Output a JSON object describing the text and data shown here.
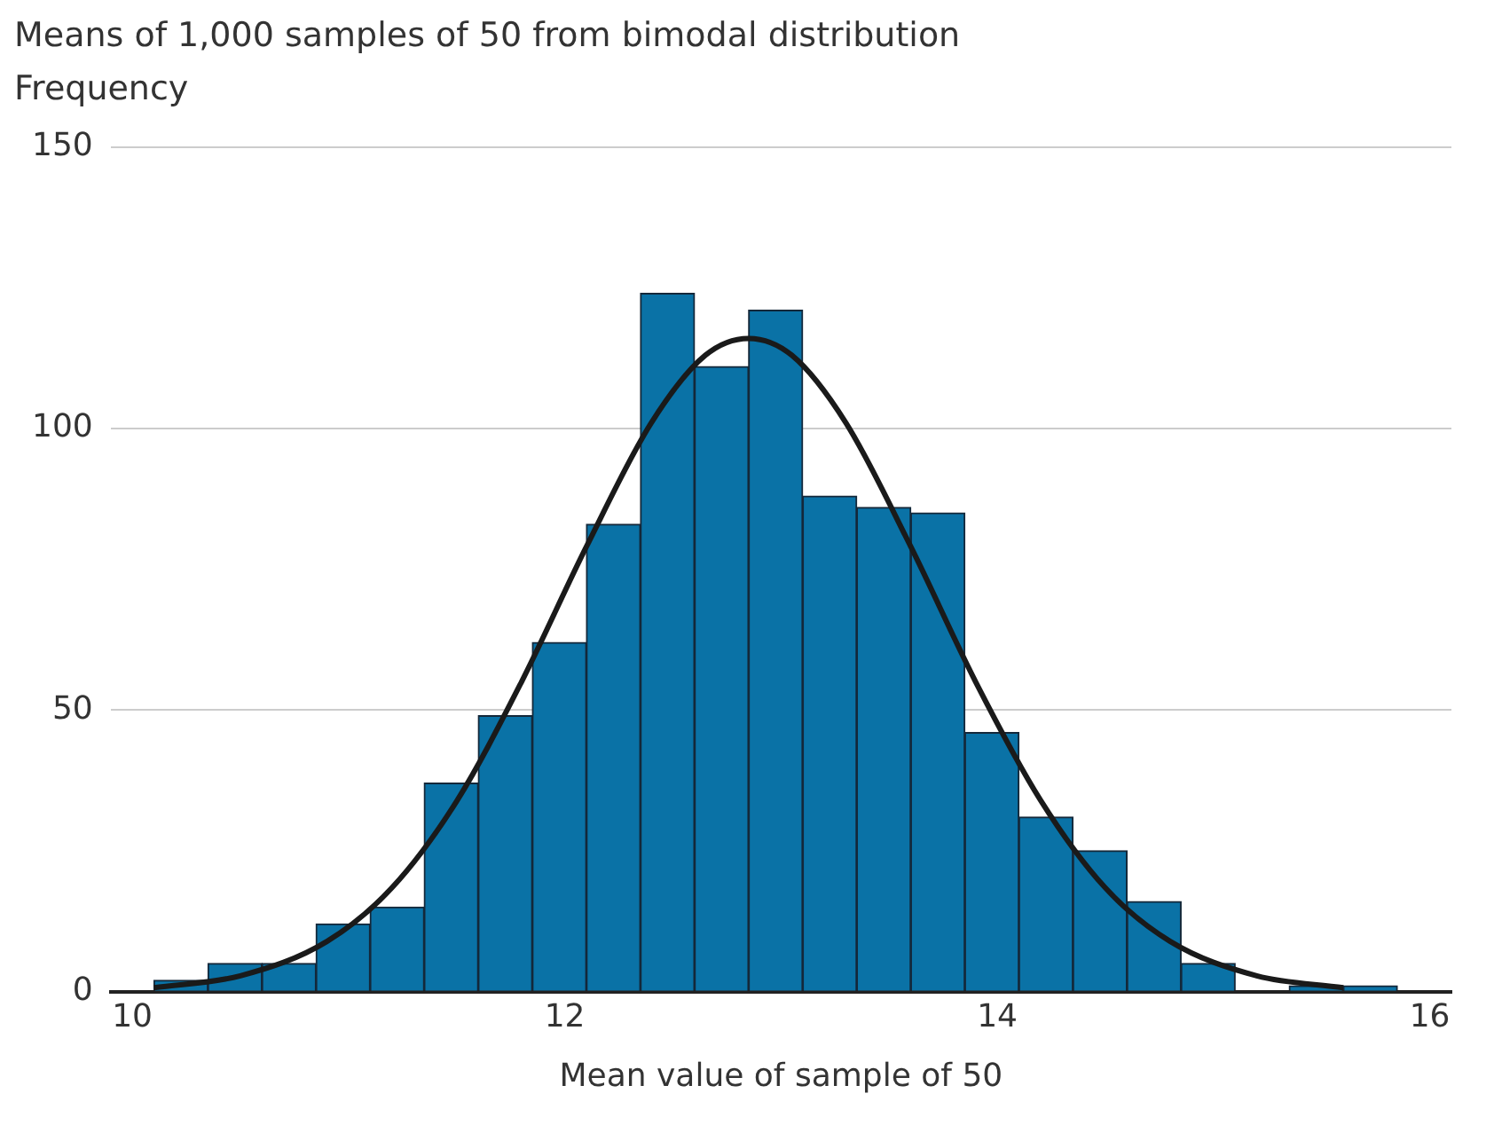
{
  "chart_data": {
    "type": "histogram",
    "title": "Means of 1,000 samples of 50 from bimodal distribution",
    "ylabel": "Frequency",
    "xlabel": "Mean value of sample of 50",
    "bins": [
      10.1,
      10.35,
      10.6,
      10.85,
      11.1,
      11.35,
      11.6,
      11.85,
      12.1,
      12.35,
      12.6,
      12.85,
      13.1,
      13.35,
      13.6,
      13.85,
      14.1,
      14.35,
      14.6,
      14.85,
      15.1,
      15.35,
      15.6,
      15.85
    ],
    "values": [
      2,
      5,
      5,
      12,
      15,
      37,
      49,
      62,
      83,
      124,
      111,
      121,
      88,
      86,
      85,
      46,
      31,
      25,
      16,
      5,
      0,
      1,
      1
    ],
    "color": "#0a72a6",
    "series": [
      {
        "type": "line",
        "color": "#1a1a1a",
        "x": [
          10.1,
          10.5,
          10.9,
          11.2,
          11.5,
          11.8,
          12.1,
          12.4,
          12.65,
          12.85,
          13.05,
          13.3,
          13.6,
          13.9,
          14.2,
          14.5,
          14.8,
          15.2,
          15.6
        ],
        "values": [
          0.7,
          2.8,
          8.9,
          18.4,
          33.8,
          55,
          79,
          101,
          113,
          116,
          113,
          101,
          79,
          55,
          34,
          18.4,
          8.9,
          2.8,
          0.7
        ]
      }
    ],
    "marker": "none",
    "xlim": [
      9.9,
      16.1
    ],
    "xticks": [
      10,
      12,
      14,
      16
    ],
    "ylim": [
      0,
      150
    ],
    "yticks": [
      0,
      50,
      100,
      150
    ],
    "grid": "y"
  }
}
